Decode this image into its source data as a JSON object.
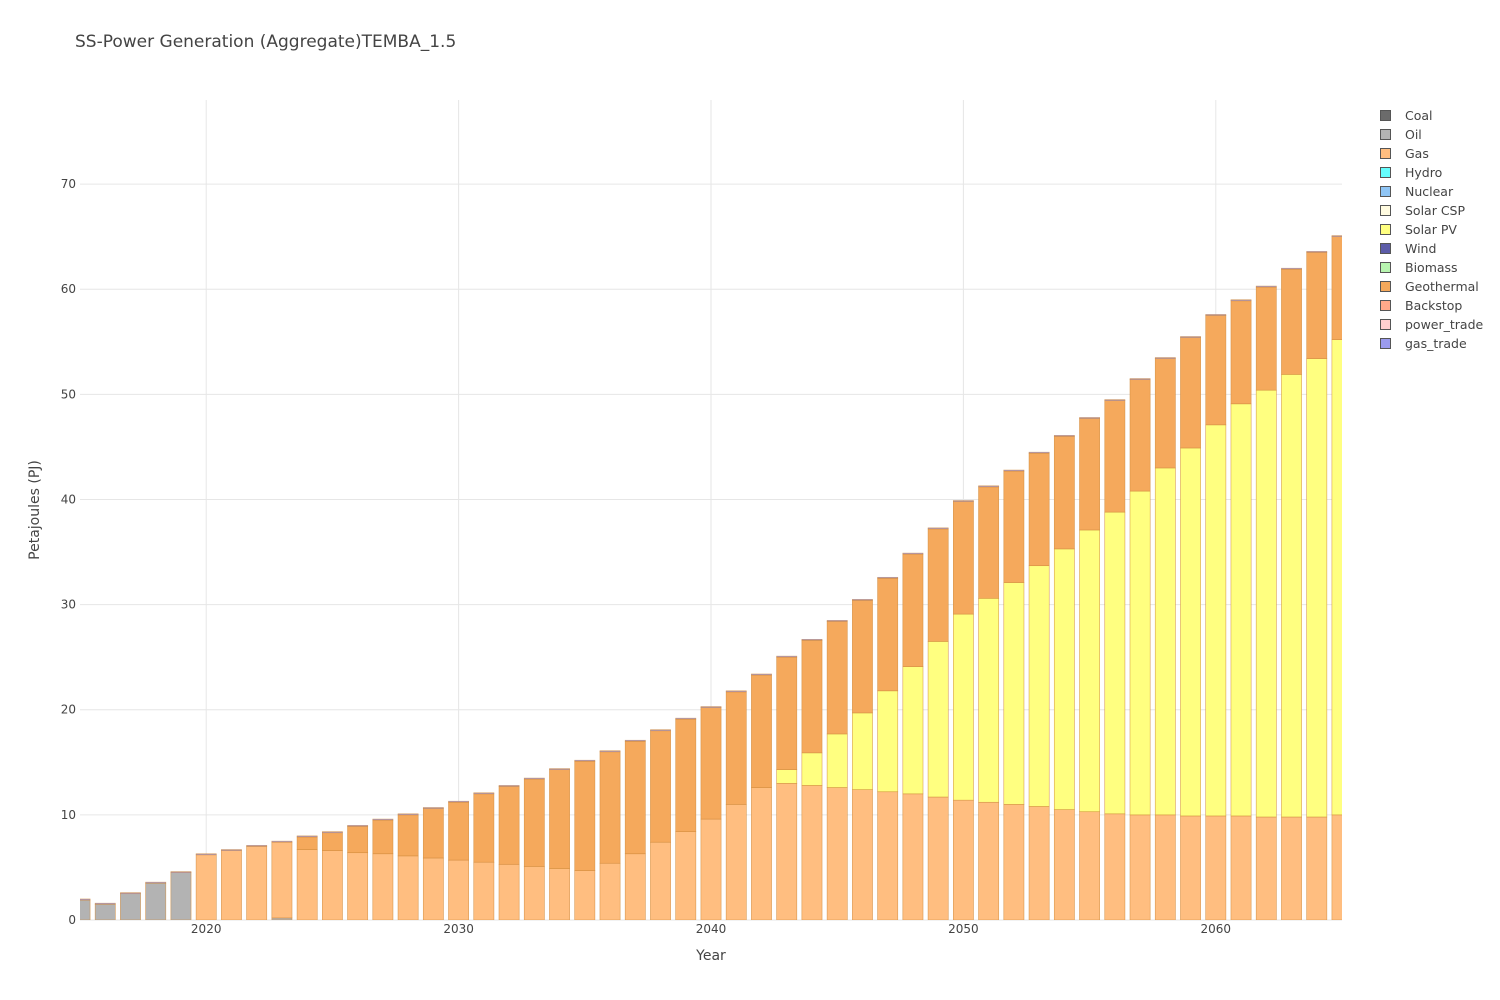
{
  "chart_data": {
    "type": "bar",
    "stacked": true,
    "title": "SS-Power Generation (Aggregate)TEMBA_1.5",
    "xlabel": "Year",
    "ylabel": "Petajoules (PJ)",
    "xlim": [
      2015,
      2065
    ],
    "ylim": [
      0,
      78
    ],
    "x_ticks": [
      "2020",
      "2030",
      "2040",
      "2050",
      "2060"
    ],
    "y_ticks": [
      "0",
      "10",
      "20",
      "30",
      "40",
      "50",
      "60",
      "70"
    ],
    "grid": true,
    "legend_position": "right",
    "x": [
      2015,
      2016,
      2017,
      2018,
      2019,
      2020,
      2021,
      2022,
      2023,
      2024,
      2025,
      2026,
      2027,
      2028,
      2029,
      2030,
      2031,
      2032,
      2033,
      2034,
      2035,
      2036,
      2037,
      2038,
      2039,
      2040,
      2041,
      2042,
      2043,
      2044,
      2045,
      2046,
      2047,
      2048,
      2049,
      2050,
      2051,
      2052,
      2053,
      2054,
      2055,
      2056,
      2057,
      2058,
      2059,
      2060,
      2061,
      2062,
      2063,
      2064,
      2065
    ],
    "series": [
      {
        "name": "Coal",
        "color": "#6b6b6b",
        "values": [
          0,
          0,
          0,
          0,
          0,
          0,
          0,
          0,
          0,
          0,
          0,
          0,
          0,
          0,
          0,
          0,
          0,
          0,
          0,
          0,
          0,
          0,
          0,
          0,
          0,
          0,
          0,
          0,
          0,
          0,
          0,
          0,
          0,
          0,
          0,
          0,
          0,
          0,
          0,
          0,
          0,
          0,
          0,
          0,
          0,
          0,
          0,
          0,
          0,
          0,
          0
        ]
      },
      {
        "name": "Oil",
        "color": "#b3b3b3",
        "values": [
          1.9,
          1.5,
          2.5,
          3.5,
          4.5,
          0,
          0,
          0,
          0.2,
          0,
          0,
          0,
          0,
          0,
          0,
          0,
          0,
          0,
          0,
          0,
          0,
          0,
          0,
          0,
          0,
          0,
          0,
          0,
          0,
          0,
          0,
          0,
          0,
          0,
          0,
          0,
          0,
          0,
          0,
          0,
          0,
          0,
          0,
          0,
          0,
          0,
          0,
          0,
          0,
          0,
          0
        ]
      },
      {
        "name": "Gas",
        "color": "#ffbe80",
        "values": [
          0,
          0,
          0,
          0,
          0,
          6.2,
          6.6,
          7.0,
          7.2,
          6.7,
          6.6,
          6.4,
          6.3,
          6.1,
          5.9,
          5.7,
          5.5,
          5.3,
          5.1,
          4.9,
          4.7,
          5.4,
          6.3,
          7.4,
          8.4,
          9.6,
          11.0,
          12.6,
          13.0,
          12.8,
          12.6,
          12.4,
          12.2,
          12.0,
          11.7,
          11.4,
          11.2,
          11.0,
          10.8,
          10.5,
          10.3,
          10.1,
          10.0,
          10.0,
          9.9,
          9.9,
          9.9,
          9.8,
          9.8,
          9.8,
          10.0
        ]
      },
      {
        "name": "Hydro",
        "color": "#66ffff",
        "values": [
          0,
          0,
          0,
          0,
          0,
          0,
          0,
          0,
          0,
          0,
          0,
          0,
          0,
          0,
          0,
          0,
          0,
          0,
          0,
          0,
          0,
          0,
          0,
          0,
          0,
          0,
          0,
          0,
          0,
          0,
          0,
          0,
          0,
          0,
          0,
          0,
          0,
          0,
          0,
          0,
          0,
          0,
          0,
          0,
          0,
          0,
          0,
          0,
          0,
          0,
          0
        ]
      },
      {
        "name": "Nuclear",
        "color": "#8fc5f5",
        "values": [
          0,
          0,
          0,
          0,
          0,
          0,
          0,
          0,
          0,
          0,
          0,
          0,
          0,
          0,
          0,
          0,
          0,
          0,
          0,
          0,
          0,
          0,
          0,
          0,
          0,
          0,
          0,
          0,
          0,
          0,
          0,
          0,
          0,
          0,
          0,
          0,
          0,
          0,
          0,
          0,
          0,
          0,
          0,
          0,
          0,
          0,
          0,
          0,
          0,
          0,
          0
        ]
      },
      {
        "name": "Solar CSP",
        "color": "#fffbe0",
        "values": [
          0,
          0,
          0,
          0,
          0,
          0,
          0,
          0,
          0,
          0,
          0,
          0,
          0,
          0,
          0,
          0,
          0,
          0,
          0,
          0,
          0,
          0,
          0,
          0,
          0,
          0,
          0,
          0,
          0,
          0,
          0,
          0,
          0,
          0,
          0,
          0,
          0,
          0,
          0,
          0,
          0,
          0,
          0,
          0,
          0,
          0,
          0,
          0,
          0,
          0,
          0
        ]
      },
      {
        "name": "Solar PV",
        "color": "#ffff80",
        "values": [
          0,
          0,
          0,
          0,
          0,
          0,
          0,
          0,
          0,
          0,
          0,
          0,
          0,
          0,
          0,
          0,
          0,
          0,
          0,
          0,
          0,
          0,
          0,
          0,
          0,
          0,
          0,
          0,
          1.3,
          3.1,
          5.1,
          7.3,
          9.6,
          12.1,
          14.8,
          17.7,
          19.4,
          21.1,
          22.9,
          24.8,
          26.8,
          28.7,
          30.8,
          33.0,
          35.0,
          37.2,
          39.2,
          40.6,
          42.1,
          43.6,
          45.2
        ]
      },
      {
        "name": "Wind",
        "color": "#5c5ca8",
        "values": [
          0,
          0,
          0,
          0,
          0,
          0,
          0,
          0,
          0,
          0,
          0,
          0,
          0,
          0,
          0,
          0,
          0,
          0,
          0,
          0,
          0,
          0,
          0,
          0,
          0,
          0,
          0,
          0,
          0,
          0,
          0,
          0,
          0,
          0,
          0,
          0,
          0,
          0,
          0,
          0,
          0,
          0,
          0,
          0,
          0,
          0,
          0,
          0,
          0,
          0,
          0
        ]
      },
      {
        "name": "Biomass",
        "color": "#b8f5b0",
        "values": [
          0,
          0,
          0,
          0,
          0,
          0,
          0,
          0,
          0,
          0,
          0,
          0,
          0,
          0,
          0,
          0,
          0,
          0,
          0,
          0,
          0,
          0,
          0,
          0,
          0,
          0,
          0,
          0,
          0,
          0,
          0,
          0,
          0,
          0,
          0,
          0,
          0,
          0,
          0,
          0,
          0,
          0,
          0,
          0,
          0,
          0,
          0,
          0,
          0,
          0,
          0
        ]
      },
      {
        "name": "Geothermal",
        "color": "#f5a95c",
        "values": [
          0,
          0,
          0,
          0,
          0,
          0,
          0,
          0,
          0,
          1.2,
          1.7,
          2.5,
          3.2,
          3.9,
          4.7,
          5.5,
          6.5,
          7.4,
          8.3,
          9.4,
          10.4,
          10.6,
          10.7,
          10.6,
          10.7,
          10.6,
          10.7,
          10.7,
          10.7,
          10.7,
          10.7,
          10.7,
          10.7,
          10.7,
          10.7,
          10.7,
          10.6,
          10.6,
          10.7,
          10.7,
          10.6,
          10.6,
          10.6,
          10.4,
          10.5,
          10.4,
          9.8,
          9.8,
          10.0,
          10.1,
          9.8
        ]
      },
      {
        "name": "Backstop",
        "color": "#ffa98a",
        "values": [
          0,
          0,
          0,
          0,
          0,
          0,
          0,
          0,
          0,
          0,
          0,
          0,
          0,
          0,
          0,
          0,
          0,
          0,
          0,
          0,
          0,
          0,
          0,
          0,
          0,
          0,
          0,
          0,
          0,
          0,
          0,
          0,
          0,
          0,
          0,
          0,
          0,
          0,
          0,
          0,
          0,
          0,
          0,
          0,
          0,
          0,
          0,
          0,
          0,
          0,
          0
        ]
      },
      {
        "name": "power_trade",
        "color": "#ffd0d0",
        "values": [
          0,
          0,
          0,
          0,
          0,
          0,
          0,
          0,
          0,
          0,
          0,
          0,
          0,
          0,
          0,
          0,
          0,
          0,
          0,
          0,
          0,
          0,
          0,
          0,
          0,
          0,
          0,
          0,
          0,
          0,
          0,
          0,
          0,
          0,
          0,
          0,
          0,
          0,
          0,
          0,
          0,
          0,
          0,
          0,
          0,
          0,
          0,
          0,
          0,
          0,
          0
        ]
      },
      {
        "name": "gas_trade",
        "color": "#9b9bee",
        "values": [
          0.1,
          0.1,
          0.1,
          0.1,
          0.1,
          0.1,
          0.1,
          0.1,
          0.1,
          0.1,
          0.1,
          0.1,
          0.1,
          0.1,
          0.1,
          0.1,
          0.1,
          0.1,
          0.1,
          0.1,
          0.1,
          0.1,
          0.1,
          0.1,
          0.1,
          0.1,
          0.1,
          0.1,
          0.1,
          0.1,
          0.1,
          0.1,
          0.1,
          0.1,
          0.1,
          0.1,
          0.1,
          0.1,
          0.1,
          0.1,
          0.1,
          0.1,
          0.1,
          0.1,
          0.1,
          0.1,
          0.1,
          0.1,
          0.1,
          0.1,
          0.1
        ]
      }
    ]
  }
}
